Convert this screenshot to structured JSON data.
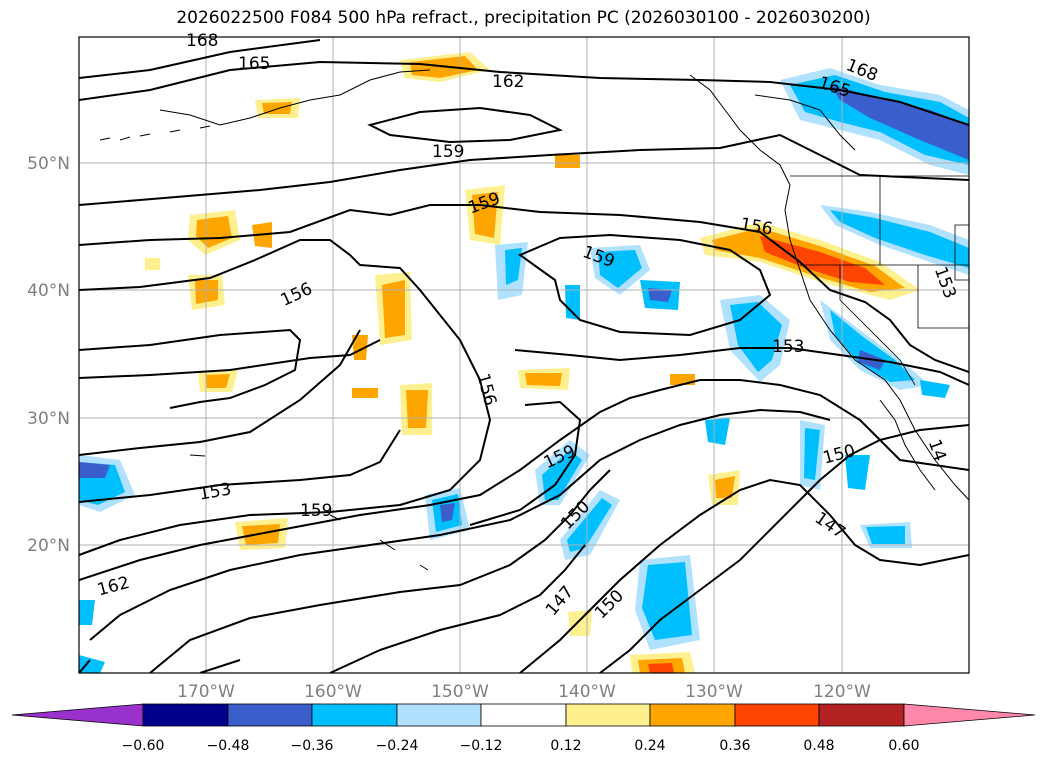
{
  "title": "2026022500 F084 500 hPa refract., precipitation PC (2026030100 - 2026030200)",
  "map": {
    "lon_ticks": [
      "170°W",
      "160°W",
      "150°W",
      "140°W",
      "130°W",
      "120°W"
    ],
    "lat_ticks": [
      "50°N",
      "40°N",
      "30°N",
      "20°N"
    ],
    "contour_labels": [
      "168",
      "165",
      "162",
      "159",
      "159",
      "159",
      "156",
      "156",
      "156",
      "153",
      "153",
      "153",
      "159",
      "159",
      "150",
      "150",
      "150",
      "147",
      "147",
      "162",
      "165",
      "168",
      "14"
    ]
  },
  "colorbar": {
    "ticks": [
      "−0.60",
      "−0.48",
      "−0.36",
      "−0.24",
      "−0.12",
      "0.12",
      "0.24",
      "0.36",
      "0.48",
      "0.60"
    ],
    "colors": [
      "#9932cc",
      "#00008b",
      "#3a5fcd",
      "#00bfff",
      "#b0e2ff",
      "#ffffff",
      "#fff08f",
      "#ffa500",
      "#ff4500",
      "#b22222",
      "#ff88aa"
    ]
  }
}
